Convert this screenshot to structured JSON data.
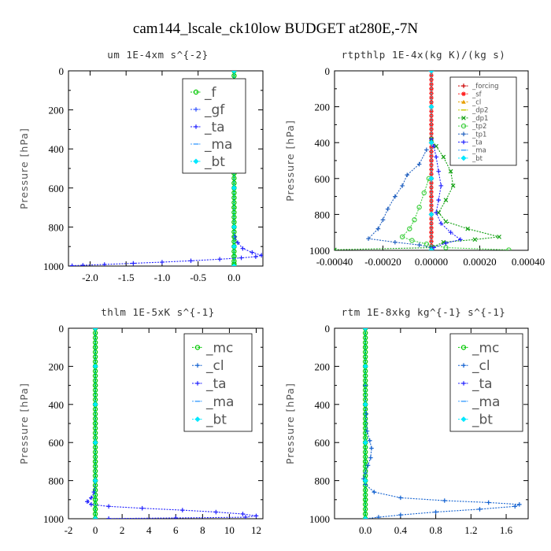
{
  "title": "cam144_lscale_ck10low  BUDGET at280E,-7N",
  "chart_data": [
    {
      "type": "line",
      "title": "um   1E-4xm  s^{-2}",
      "ylabel": "Pressure [hPa]",
      "xlim": [
        -2.3,
        0.4
      ],
      "ylim": [
        1000,
        0
      ],
      "xticks": [
        -2.0,
        -1.5,
        -1.0,
        -0.5,
        0.0
      ],
      "xticklabels": [
        "-2.0",
        "-1.5",
        "-1.0",
        "-0.5",
        "0.0"
      ],
      "yticks": [
        0,
        200,
        400,
        600,
        800,
        1000
      ],
      "legend": {
        "position": "top-right",
        "size": "large"
      },
      "series": [
        {
          "name": "_f",
          "color": "#00c800",
          "marker": "o",
          "points": [
            [
              0.0,
              0
            ],
            [
              0.0,
              100
            ],
            [
              0.0,
              200
            ],
            [
              0.0,
              300
            ],
            [
              0.0,
              400
            ],
            [
              0.0,
              500
            ],
            [
              0.0,
              600
            ],
            [
              0.0,
              700
            ],
            [
              0.0,
              800
            ],
            [
              0.0,
              900
            ],
            [
              0.0,
              950
            ],
            [
              0.0,
              990
            ],
            [
              0.0,
              1000
            ]
          ]
        },
        {
          "name": "_gf",
          "color": "#3050ff",
          "marker": "+",
          "points": []
        },
        {
          "name": "_ta",
          "color": "#2020ff",
          "marker": "+",
          "points": [
            [
              0.0,
              0
            ],
            [
              0.0,
              400
            ],
            [
              0.0,
              800
            ],
            [
              0.01,
              850
            ],
            [
              0.05,
              880
            ],
            [
              0.12,
              910
            ],
            [
              0.25,
              930
            ],
            [
              0.38,
              945
            ],
            [
              0.3,
              952
            ],
            [
              0.1,
              958
            ],
            [
              -0.2,
              965
            ],
            [
              -0.6,
              973
            ],
            [
              -1.0,
              980
            ],
            [
              -1.4,
              986
            ],
            [
              -1.8,
              992
            ],
            [
              -2.1,
              996
            ],
            [
              -2.25,
              998
            ]
          ]
        },
        {
          "name": "_ma",
          "color": "#40a0ff",
          "marker": "-",
          "points": []
        },
        {
          "name": "_bt",
          "color": "#00e8ff",
          "marker": "d",
          "points": [
            [
              0.0,
              0
            ],
            [
              0.0,
              200
            ],
            [
              0.0,
              400
            ],
            [
              0.0,
              600
            ],
            [
              0.0,
              800
            ],
            [
              0.0,
              900
            ],
            [
              0.0,
              1000
            ]
          ]
        }
      ]
    },
    {
      "type": "line",
      "title": "rtpthlp   1E-4x(kg K)/(kg s)",
      "ylabel": "Pressure [hPa]",
      "xlim": [
        -0.0004,
        0.0004
      ],
      "ylim": [
        1000,
        0
      ],
      "xticks": [
        -0.0004,
        -0.0002,
        0.0,
        0.0002,
        0.0004
      ],
      "xticklabels": [
        "-0.00040",
        "-0.00020",
        "0.00000",
        "0.00020",
        "0.00040"
      ],
      "yticks": [
        0,
        200,
        400,
        600,
        800,
        1000
      ],
      "legend": {
        "position": "top-right",
        "size": "small"
      },
      "series": [
        {
          "name": "_forcing",
          "color": "#cc0000",
          "marker": "+",
          "points": [
            [
              0,
              0
            ],
            [
              0,
              200
            ],
            [
              0,
              400
            ],
            [
              0,
              600
            ],
            [
              0,
              800
            ],
            [
              0,
              1000
            ]
          ]
        },
        {
          "name": "_sf",
          "color": "#ff2020",
          "marker": "*",
          "points": [
            [
              0,
              0
            ],
            [
              0,
              100
            ],
            [
              0,
              200
            ],
            [
              0,
              300
            ],
            [
              0,
              400
            ],
            [
              0,
              500
            ],
            [
              0,
              600
            ],
            [
              0,
              700
            ],
            [
              0,
              800
            ],
            [
              0,
              900
            ],
            [
              0,
              1000
            ]
          ]
        },
        {
          "name": "_cl",
          "color": "#e8a000",
          "marker": "^",
          "points": []
        },
        {
          "name": "_dp2",
          "color": "#c8c800",
          "marker": "-",
          "points": []
        },
        {
          "name": "_dp1",
          "color": "#10a010",
          "marker": "x",
          "points": [
            [
              0,
              380
            ],
            [
              2e-05,
              420
            ],
            [
              5e-05,
              480
            ],
            [
              8e-05,
              560
            ],
            [
              9e-05,
              640
            ],
            [
              6e-05,
              720
            ],
            [
              3e-05,
              790
            ],
            [
              6e-05,
              840
            ],
            [
              0.00015,
              880
            ],
            [
              0.00028,
              925
            ],
            [
              0.00018,
              940
            ],
            [
              5e-05,
              955
            ],
            [
              0.0,
              985
            ],
            [
              -0.0004,
              997
            ]
          ]
        },
        {
          "name": "_tp2",
          "color": "#40d040",
          "marker": "o",
          "points": [
            [
              -1e-05,
              600
            ],
            [
              -3e-05,
              680
            ],
            [
              -5e-05,
              760
            ],
            [
              -7e-05,
              830
            ],
            [
              -9e-05,
              880
            ],
            [
              -0.00012,
              925
            ],
            [
              -8e-05,
              945
            ],
            [
              -2e-05,
              965
            ],
            [
              6e-05,
              985
            ],
            [
              0.00032,
              998
            ]
          ]
        },
        {
          "name": "_tp1",
          "color": "#2060c0",
          "marker": "+",
          "points": [
            [
              -2e-05,
              440
            ],
            [
              -5e-05,
              520
            ],
            [
              -0.0001,
              580
            ],
            [
              -0.00012,
              640
            ],
            [
              -0.00015,
              700
            ],
            [
              -0.00018,
              770
            ],
            [
              -0.0002,
              830
            ],
            [
              -0.00022,
              880
            ],
            [
              -0.00026,
              935
            ],
            [
              -0.00015,
              955
            ],
            [
              -5e-05,
              970
            ],
            [
              0.0,
              985
            ]
          ]
        },
        {
          "name": "_ta",
          "color": "#2020ff",
          "marker": "+",
          "points": [
            [
              0,
              380
            ],
            [
              1e-05,
              420
            ],
            [
              2e-05,
              480
            ],
            [
              3e-05,
              560
            ],
            [
              4e-05,
              640
            ],
            [
              3e-05,
              720
            ],
            [
              2e-05,
              790
            ],
            [
              4e-05,
              850
            ],
            [
              8e-05,
              900
            ],
            [
              0.00012,
              940
            ],
            [
              6e-05,
              960
            ],
            [
              1e-05,
              985
            ]
          ]
        },
        {
          "name": "_ma",
          "color": "#40a0ff",
          "marker": "-",
          "points": []
        },
        {
          "name": "_bt",
          "color": "#00e8ff",
          "marker": "d",
          "points": [
            [
              0,
              0
            ],
            [
              0,
              200
            ],
            [
              0,
              400
            ],
            [
              0,
              600
            ],
            [
              0,
              800
            ],
            [
              0,
              1000
            ]
          ]
        }
      ]
    },
    {
      "type": "line",
      "title": "thlm   1E-5xK  s^{-1}",
      "ylabel": "Pressure [hPa]",
      "xlim": [
        -2,
        12.5
      ],
      "ylim": [
        1000,
        0
      ],
      "xticks": [
        -2,
        0,
        2,
        4,
        6,
        8,
        10,
        12
      ],
      "xticklabels": [
        "-2",
        "0",
        "2",
        "4",
        "6",
        "8",
        "10",
        "12"
      ],
      "yticks": [
        0,
        200,
        400,
        600,
        800,
        1000
      ],
      "legend": {
        "position": "top-right",
        "size": "large"
      },
      "series": [
        {
          "name": "_mc",
          "color": "#00c800",
          "marker": "o",
          "points": [
            [
              0,
              0
            ],
            [
              0,
              100
            ],
            [
              0,
              200
            ],
            [
              0,
              300
            ],
            [
              0,
              400
            ],
            [
              0,
              500
            ],
            [
              0,
              600
            ],
            [
              0,
              700
            ],
            [
              0,
              800
            ],
            [
              0,
              900
            ],
            [
              0,
              950
            ],
            [
              0,
              1000
            ]
          ]
        },
        {
          "name": "_cl",
          "color": "#1060d0",
          "marker": "+",
          "points": []
        },
        {
          "name": "_ta",
          "color": "#2020ff",
          "marker": "+",
          "points": [
            [
              0,
              0
            ],
            [
              0,
              400
            ],
            [
              0,
              800
            ],
            [
              -0.1,
              860
            ],
            [
              -0.3,
              890
            ],
            [
              -0.6,
              910
            ],
            [
              -0.3,
              925
            ],
            [
              1.0,
              935
            ],
            [
              3.5,
              945
            ],
            [
              6.5,
              955
            ],
            [
              9.0,
              965
            ],
            [
              11.0,
              975
            ],
            [
              12.0,
              985
            ],
            [
              11.2,
              992
            ],
            [
              6.0,
              996
            ],
            [
              1.0,
              999
            ]
          ]
        },
        {
          "name": "_ma",
          "color": "#40a0ff",
          "marker": "-",
          "points": []
        },
        {
          "name": "_bt",
          "color": "#00e8ff",
          "marker": "d",
          "points": [
            [
              0,
              0
            ],
            [
              0,
              200
            ],
            [
              0,
              400
            ],
            [
              0,
              600
            ],
            [
              0,
              800
            ],
            [
              0,
              1000
            ]
          ]
        }
      ]
    },
    {
      "type": "line",
      "title": "rtm   1E-8xkg  kg^{-1}  s^{-1}",
      "ylabel": "Pressure [hPa]",
      "xlim": [
        -0.35,
        1.85
      ],
      "ylim": [
        1000,
        0
      ],
      "xticks": [
        0.0,
        0.4,
        0.8,
        1.2,
        1.6
      ],
      "xticklabels": [
        "0.0",
        "0.4",
        "0.8",
        "1.2",
        "1.6"
      ],
      "yticks": [
        0,
        200,
        400,
        600,
        800,
        1000
      ],
      "legend": {
        "position": "top-right",
        "size": "large"
      },
      "series": [
        {
          "name": "_mc",
          "color": "#00c800",
          "marker": "o",
          "points": [
            [
              0,
              0
            ],
            [
              0,
              100
            ],
            [
              0,
              200
            ],
            [
              0,
              300
            ],
            [
              0,
              400
            ],
            [
              0,
              500
            ],
            [
              0,
              600
            ],
            [
              0,
              700
            ],
            [
              0,
              800
            ],
            [
              0,
              900
            ],
            [
              0,
              1000
            ]
          ]
        },
        {
          "name": "_cl",
          "color": "#1060d0",
          "marker": "+",
          "points": [
            [
              0,
              0
            ],
            [
              0.0,
              300
            ],
            [
              0.01,
              450
            ],
            [
              0.02,
              540
            ],
            [
              0.05,
              590
            ],
            [
              0.07,
              630
            ],
            [
              0.06,
              680
            ],
            [
              0.03,
              720
            ],
            [
              0.0,
              760
            ],
            [
              -0.02,
              790
            ],
            [
              0.0,
              820
            ],
            [
              0.1,
              860
            ],
            [
              0.4,
              890
            ],
            [
              0.9,
              905
            ],
            [
              1.4,
              915
            ],
            [
              1.75,
              925
            ],
            [
              1.7,
              935
            ],
            [
              1.3,
              950
            ],
            [
              0.8,
              965
            ],
            [
              0.4,
              980
            ],
            [
              0.15,
              992
            ],
            [
              0.0,
              1000
            ]
          ]
        },
        {
          "name": "_ta",
          "color": "#2020ff",
          "marker": "+",
          "points": []
        },
        {
          "name": "_ma",
          "color": "#40a0ff",
          "marker": "-",
          "points": []
        },
        {
          "name": "_bt",
          "color": "#00e8ff",
          "marker": "d",
          "points": [
            [
              0,
              0
            ],
            [
              0,
              200
            ],
            [
              0,
              400
            ],
            [
              0,
              600
            ],
            [
              0,
              800
            ],
            [
              0,
              1000
            ]
          ]
        }
      ]
    }
  ]
}
